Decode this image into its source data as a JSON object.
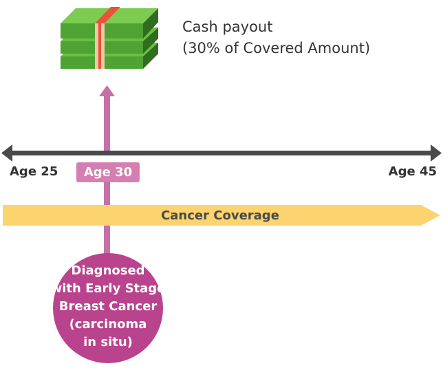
{
  "payout": {
    "lines": [
      "Cash payout",
      "(30% of Covered Amount)"
    ]
  },
  "timeline": {
    "start_label": "Age 25",
    "event_label": "Age 30",
    "end_label": "Age 45"
  },
  "coverage": {
    "label": "Cancer Coverage"
  },
  "diagnosis": {
    "lines": [
      "Diagnosed",
      "with Early Stage",
      "Breast Cancer",
      "(carcinoma",
      "in situ)"
    ]
  }
}
